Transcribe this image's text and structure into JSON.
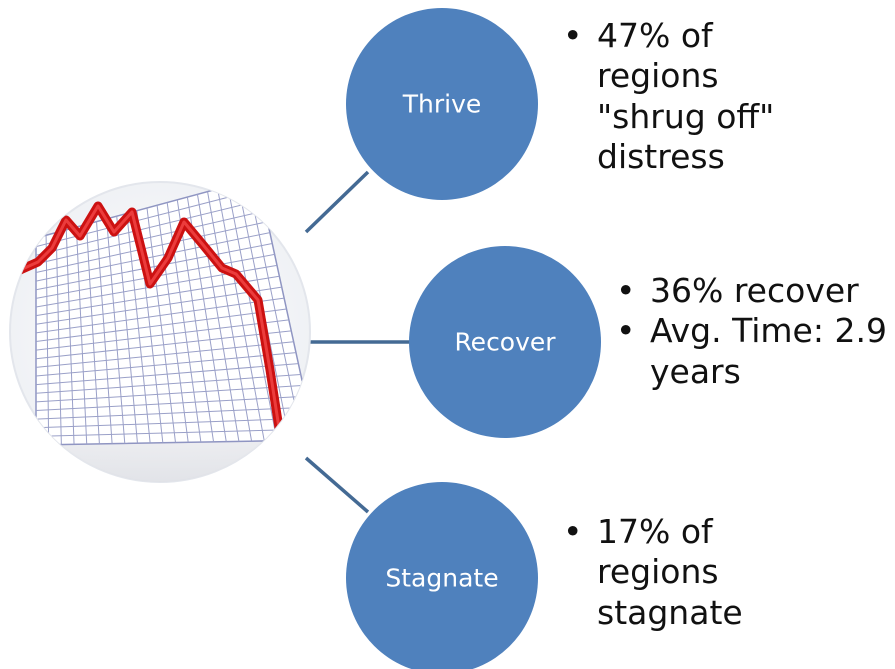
{
  "nodes": {
    "thrive": {
      "label": "Thrive",
      "color": "#4F81BD"
    },
    "recover": {
      "label": "Recover",
      "color": "#4F81BD"
    },
    "stagnate": {
      "label": "Stagnate",
      "color": "#4F81BD"
    }
  },
  "hub": {
    "image_description": "falling-stock-chart-icon",
    "line_color": "#CC1111",
    "grid_color": "#9AA0C8"
  },
  "connector_color": "#446A94",
  "bullets": {
    "thrive": [
      "47% of regions \"shrug off\" distress"
    ],
    "recover": [
      "36% recover",
      "Avg. Time: 2.9 years"
    ],
    "stagnate": [
      "17% of regions stagnate"
    ]
  }
}
